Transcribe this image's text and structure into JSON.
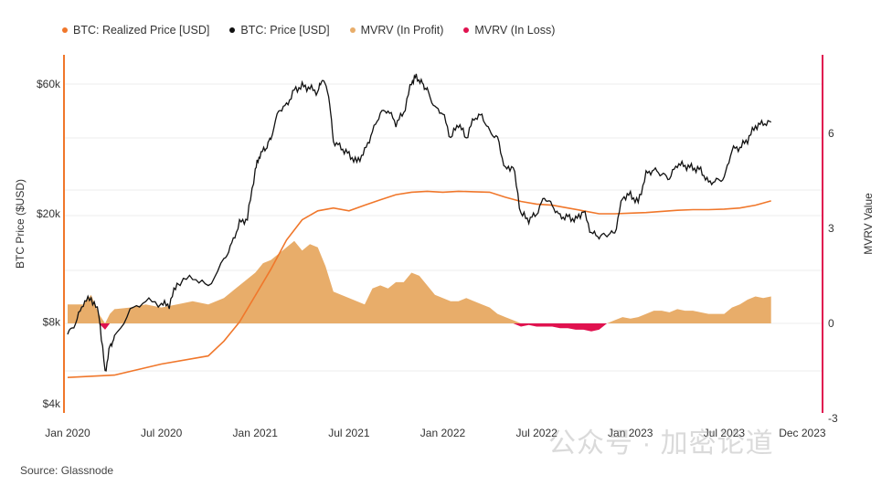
{
  "chart_data": {
    "type": "line",
    "legend": {
      "position": "top-left",
      "items": [
        {
          "label": "BTC: Realized Price [USD]",
          "color": "#f0772b"
        },
        {
          "label": "BTC: Price [USD]",
          "color": "#111111"
        },
        {
          "label": "MVRV (In Profit)",
          "color": "#e8ad6a"
        },
        {
          "label": "MVRV (In Loss)",
          "color": "#e0124f"
        }
      ]
    },
    "yleft_label": "BTC Price ($USD)",
    "yright_label": "MVRV Value",
    "yleft_ticks": [
      "$60k",
      "$20k",
      "$8k",
      "$4k"
    ],
    "yright_ticks": [
      "6",
      "3",
      "0",
      "-3"
    ],
    "yright_range": [
      -3,
      8
    ],
    "x_ticks": [
      "Jan 2020",
      "Jul 2020",
      "Jan 2021",
      "Jul 2021",
      "Jan 2022",
      "Jul 2022",
      "Jan 2023",
      "Jul 2023",
      "Dec 2023"
    ],
    "x_range_months": [
      0,
      48
    ],
    "price_series": [
      [
        0,
        7200
      ],
      [
        0.5,
        7900
      ],
      [
        1,
        9400
      ],
      [
        1.5,
        9800
      ],
      [
        2,
        8600
      ],
      [
        2.4,
        5200
      ],
      [
        2.7,
        6500
      ],
      [
        3,
        7000
      ],
      [
        4,
        8800
      ],
      [
        5,
        9600
      ],
      [
        6,
        9300
      ],
      [
        6.5,
        9250
      ],
      [
        7,
        11100
      ],
      [
        8,
        11700
      ],
      [
        9,
        10800
      ],
      [
        10,
        13500
      ],
      [
        10.5,
        15500
      ],
      [
        11,
        18500
      ],
      [
        11.5,
        19200
      ],
      [
        12,
        29000
      ],
      [
        12.3,
        33000
      ],
      [
        12.7,
        35000
      ],
      [
        13,
        38000
      ],
      [
        13.5,
        48000
      ],
      [
        14,
        50000
      ],
      [
        14.5,
        57000
      ],
      [
        15,
        59000
      ],
      [
        15.5,
        58000
      ],
      [
        16,
        56000
      ],
      [
        16.3,
        63000
      ],
      [
        16.7,
        55000
      ],
      [
        17,
        37000
      ],
      [
        17.5,
        35000
      ],
      [
        18,
        33000
      ],
      [
        18.5,
        31000
      ],
      [
        19,
        34000
      ],
      [
        19.5,
        40000
      ],
      [
        20,
        47000
      ],
      [
        20.5,
        48000
      ],
      [
        21,
        43000
      ],
      [
        21.5,
        47000
      ],
      [
        22,
        61000
      ],
      [
        22.3,
        64000
      ],
      [
        22.7,
        60000
      ],
      [
        23,
        57000
      ],
      [
        23.5,
        49000
      ],
      [
        24,
        47000
      ],
      [
        24.5,
        38000
      ],
      [
        25,
        43000
      ],
      [
        25.5,
        38000
      ],
      [
        26,
        45000
      ],
      [
        26.5,
        46000
      ],
      [
        27,
        40000
      ],
      [
        27.5,
        38000
      ],
      [
        28,
        29000
      ],
      [
        28.5,
        30000
      ],
      [
        29,
        20000
      ],
      [
        29.5,
        19000
      ],
      [
        30,
        20000
      ],
      [
        30.5,
        23000
      ],
      [
        31,
        21500
      ],
      [
        31.5,
        19500
      ],
      [
        32,
        19500
      ],
      [
        32.5,
        19000
      ],
      [
        33,
        20500
      ],
      [
        33.5,
        17000
      ],
      [
        34,
        16500
      ],
      [
        34.5,
        16800
      ],
      [
        35,
        17000
      ],
      [
        35.5,
        23000
      ],
      [
        36,
        23500
      ],
      [
        36.5,
        22000
      ],
      [
        37,
        28000
      ],
      [
        37.5,
        29000
      ],
      [
        38,
        28000
      ],
      [
        38.5,
        27000
      ],
      [
        39,
        30500
      ],
      [
        39.5,
        30000
      ],
      [
        40,
        29500
      ],
      [
        40.5,
        29000
      ],
      [
        41,
        26000
      ],
      [
        41.5,
        26500
      ],
      [
        42,
        27000
      ],
      [
        42.5,
        34500
      ],
      [
        43,
        35000
      ],
      [
        43.5,
        37500
      ],
      [
        44,
        42000
      ],
      [
        44.5,
        43000
      ],
      [
        45,
        43500
      ]
    ],
    "realized_price_series": [
      [
        0,
        5000
      ],
      [
        3,
        5100
      ],
      [
        6,
        5600
      ],
      [
        9,
        6000
      ],
      [
        10,
        6800
      ],
      [
        11,
        8000
      ],
      [
        12,
        10000
      ],
      [
        13,
        12500
      ],
      [
        14,
        16000
      ],
      [
        15,
        19000
      ],
      [
        16,
        20500
      ],
      [
        17,
        21000
      ],
      [
        18,
        20500
      ],
      [
        19,
        21500
      ],
      [
        20,
        22500
      ],
      [
        21,
        23500
      ],
      [
        22,
        24000
      ],
      [
        23,
        24200
      ],
      [
        24,
        24000
      ],
      [
        25,
        24200
      ],
      [
        26,
        24100
      ],
      [
        27,
        24000
      ],
      [
        28,
        23000
      ],
      [
        29,
        22200
      ],
      [
        30,
        21700
      ],
      [
        31,
        21500
      ],
      [
        32,
        21000
      ],
      [
        33,
        20500
      ],
      [
        34,
        20000
      ],
      [
        35,
        20000
      ],
      [
        36,
        20100
      ],
      [
        37,
        20200
      ],
      [
        38,
        20400
      ],
      [
        39,
        20600
      ],
      [
        40,
        20700
      ],
      [
        41,
        20700
      ],
      [
        42,
        20800
      ],
      [
        43,
        21000
      ],
      [
        44,
        21500
      ],
      [
        45,
        22300
      ]
    ],
    "mvrv_series": [
      [
        0,
        0.6
      ],
      [
        1,
        0.6
      ],
      [
        1.5,
        0.9
      ],
      [
        2,
        0.3
      ],
      [
        2.4,
        -0.2
      ],
      [
        2.7,
        0.3
      ],
      [
        3,
        0.45
      ],
      [
        4,
        0.5
      ],
      [
        5,
        0.6
      ],
      [
        6,
        0.5
      ],
      [
        7,
        0.6
      ],
      [
        8,
        0.7
      ],
      [
        9,
        0.6
      ],
      [
        10,
        0.8
      ],
      [
        11,
        1.2
      ],
      [
        12,
        1.6
      ],
      [
        12.5,
        1.9
      ],
      [
        13,
        2.0
      ],
      [
        13.5,
        2.2
      ],
      [
        14,
        2.4
      ],
      [
        14.5,
        2.6
      ],
      [
        15,
        2.3
      ],
      [
        15.5,
        2.5
      ],
      [
        16,
        2.4
      ],
      [
        16.5,
        1.8
      ],
      [
        17,
        1.0
      ],
      [
        17.5,
        0.9
      ],
      [
        18,
        0.8
      ],
      [
        18.5,
        0.7
      ],
      [
        19,
        0.6
      ],
      [
        19.5,
        1.1
      ],
      [
        20,
        1.2
      ],
      [
        20.5,
        1.1
      ],
      [
        21,
        1.3
      ],
      [
        21.5,
        1.3
      ],
      [
        22,
        1.6
      ],
      [
        22.5,
        1.5
      ],
      [
        23,
        1.2
      ],
      [
        23.5,
        0.9
      ],
      [
        24,
        0.8
      ],
      [
        24.5,
        0.7
      ],
      [
        25,
        0.7
      ],
      [
        25.5,
        0.8
      ],
      [
        26,
        0.7
      ],
      [
        26.5,
        0.6
      ],
      [
        27,
        0.5
      ],
      [
        27.5,
        0.3
      ],
      [
        28,
        0.2
      ],
      [
        28.5,
        0.1
      ],
      [
        29,
        -0.1
      ],
      [
        29.5,
        -0.05
      ],
      [
        30,
        -0.1
      ],
      [
        30.5,
        -0.1
      ],
      [
        31,
        -0.1
      ],
      [
        31.5,
        -0.15
      ],
      [
        32,
        -0.15
      ],
      [
        32.5,
        -0.2
      ],
      [
        33,
        -0.2
      ],
      [
        33.5,
        -0.25
      ],
      [
        34,
        -0.2
      ],
      [
        34.5,
        0.0
      ],
      [
        35,
        0.1
      ],
      [
        35.5,
        0.2
      ],
      [
        36,
        0.15
      ],
      [
        36.5,
        0.2
      ],
      [
        37,
        0.3
      ],
      [
        37.5,
        0.4
      ],
      [
        38,
        0.4
      ],
      [
        38.5,
        0.35
      ],
      [
        39,
        0.45
      ],
      [
        39.5,
        0.4
      ],
      [
        40,
        0.4
      ],
      [
        40.5,
        0.35
      ],
      [
        41,
        0.3
      ],
      [
        41.5,
        0.3
      ],
      [
        42,
        0.3
      ],
      [
        42.5,
        0.5
      ],
      [
        43,
        0.6
      ],
      [
        43.5,
        0.75
      ],
      [
        44,
        0.85
      ],
      [
        44.5,
        0.8
      ],
      [
        45,
        0.85
      ]
    ]
  },
  "source": "Source: Glassnode",
  "watermark": "公众号 · 加密论道"
}
